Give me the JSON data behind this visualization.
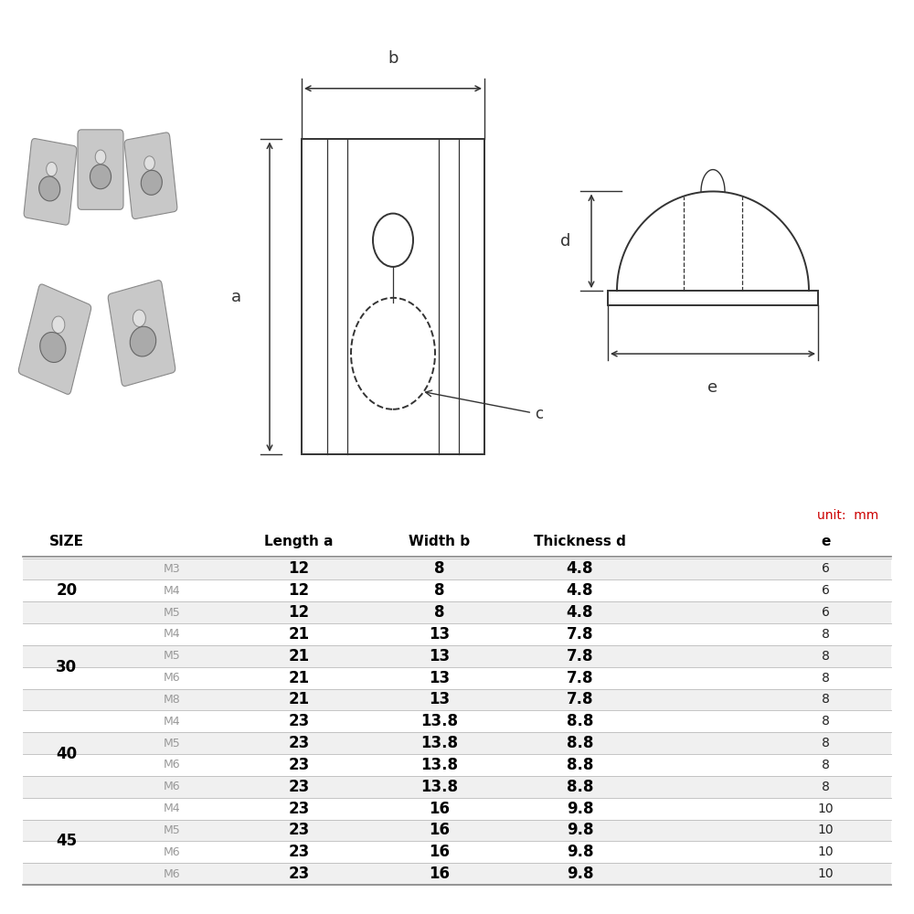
{
  "bg_color": "#ffffff",
  "unit_label": "unit:  mm",
  "unit_color": "#cc0000",
  "table_data": [
    [
      "20",
      "M3",
      "12",
      "8",
      "4.8",
      "6"
    ],
    [
      "20",
      "M4",
      "12",
      "8",
      "4.8",
      "6"
    ],
    [
      "20",
      "M5",
      "12",
      "8",
      "4.8",
      "6"
    ],
    [
      "30",
      "M4",
      "21",
      "13",
      "7.8",
      "8"
    ],
    [
      "30",
      "M5",
      "21",
      "13",
      "7.8",
      "8"
    ],
    [
      "30",
      "M6",
      "21",
      "13",
      "7.8",
      "8"
    ],
    [
      "30",
      "M8",
      "21",
      "13",
      "7.8",
      "8"
    ],
    [
      "40",
      "M4",
      "23",
      "13.8",
      "8.8",
      "8"
    ],
    [
      "40",
      "M5",
      "23",
      "13.8",
      "8.8",
      "8"
    ],
    [
      "40",
      "M6",
      "23",
      "13.8",
      "8.8",
      "8"
    ],
    [
      "40",
      "M6",
      "23",
      "13.8",
      "8.8",
      "8"
    ],
    [
      "45",
      "M4",
      "23",
      "16",
      "9.8",
      "10"
    ],
    [
      "45",
      "M5",
      "23",
      "16",
      "9.8",
      "10"
    ],
    [
      "45",
      "M6",
      "23",
      "16",
      "9.8",
      "10"
    ],
    [
      "45",
      "M6",
      "23",
      "16",
      "9.8",
      "10"
    ]
  ],
  "group_sizes": {
    "20": 3,
    "30": 4,
    "40": 4,
    "45": 4
  },
  "group_order": [
    "20",
    "30",
    "40",
    "45"
  ],
  "header_color": "#000000",
  "row_colors": [
    "#f0f0f0",
    "#ffffff"
  ],
  "line_color": "#bbbbbb",
  "text_color_dark": "#222222",
  "text_color_medium": "#999999",
  "diagram_color": "#333333"
}
